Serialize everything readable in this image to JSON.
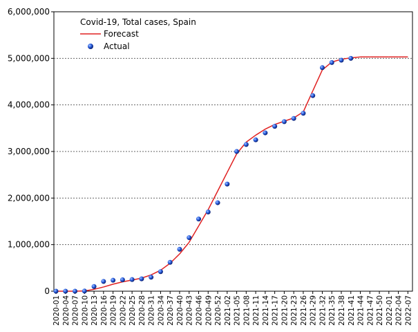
{
  "chart_data": {
    "type": "line",
    "title": "Covid-19, Total cases, Spain",
    "categories": [
      "2020-01",
      "2020-04",
      "2020-07",
      "2020-10",
      "2020-13",
      "2020-16",
      "2020-19",
      "2020-22",
      "2020-25",
      "2020-28",
      "2020-31",
      "2020-34",
      "2020-37",
      "2020-40",
      "2020-43",
      "2020-46",
      "2020-49",
      "2020-52",
      "2021-02",
      "2021-05",
      "2021-08",
      "2021-11",
      "2021-14",
      "2021-17",
      "2021-20",
      "2021-23",
      "2021-26",
      "2021-29",
      "2021-32",
      "2021-35",
      "2021-38",
      "2021-41",
      "2021-44",
      "2021-47",
      "2021-50",
      "2022-01",
      "2022-04",
      "2022-07"
    ],
    "series": [
      {
        "name": "Forecast",
        "color": "#e02020",
        "style": "line",
        "values": [
          0,
          0,
          0,
          5000,
          40000,
          90000,
          150000,
          200000,
          240000,
          280000,
          350000,
          450000,
          600000,
          800000,
          1050000,
          1400000,
          1750000,
          2150000,
          2550000,
          2950000,
          3200000,
          3350000,
          3480000,
          3580000,
          3650000,
          3720000,
          3850000,
          4300000,
          4750000,
          4920000,
          4980000,
          5010000,
          5030000,
          5030000,
          5030000,
          5030000,
          5030000,
          5030000
        ]
      },
      {
        "name": "Actual",
        "color": "#1a4fd0",
        "style": "markers",
        "values": [
          0,
          0,
          0,
          3000,
          100000,
          210000,
          235000,
          245000,
          250000,
          265000,
          300000,
          420000,
          620000,
          900000,
          1150000,
          1550000,
          1700000,
          1900000,
          2300000,
          3000000,
          3150000,
          3250000,
          3400000,
          3540000,
          3640000,
          3710000,
          3820000,
          4200000,
          4800000,
          4910000,
          4960000,
          5000000,
          null,
          null,
          null,
          null,
          null,
          null
        ]
      }
    ],
    "ylim": [
      0,
      6000000
    ],
    "yticks": [
      {
        "value": 0,
        "label": "0"
      },
      {
        "value": 1000000,
        "label": "1,000,000"
      },
      {
        "value": 2000000,
        "label": "2,000,000"
      },
      {
        "value": 3000000,
        "label": "3,000,000"
      },
      {
        "value": 4000000,
        "label": "4,000,000"
      },
      {
        "value": 5000000,
        "label": "5,000,000"
      },
      {
        "value": 6000000,
        "label": "6,000,000"
      }
    ],
    "grid": true
  }
}
